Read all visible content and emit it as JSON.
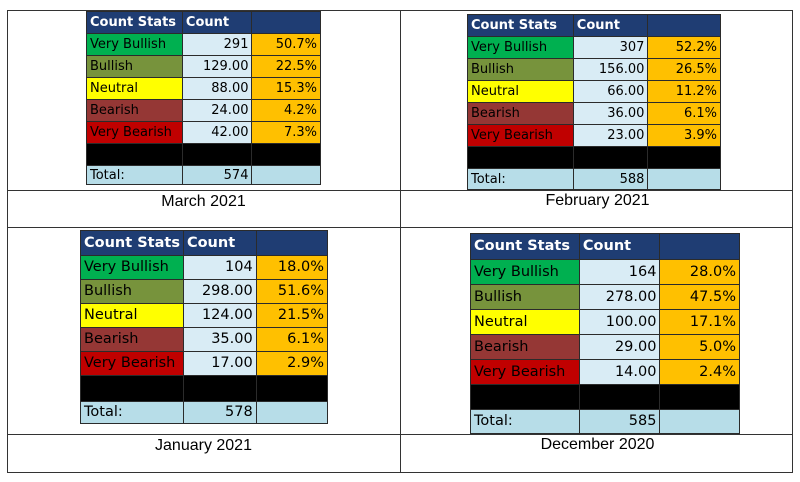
{
  "tables": [
    {
      "caption": "March 2021",
      "header": {
        "label": "Count Stats",
        "count": "Count",
        "pct": ""
      },
      "rows": [
        {
          "label": "Very Bullish",
          "count": "291",
          "pct": "50.7%"
        },
        {
          "label": "Bullish",
          "count": "129.00",
          "pct": "22.5%"
        },
        {
          "label": "Neutral",
          "count": "88.00",
          "pct": "15.3%"
        },
        {
          "label": "Bearish",
          "count": "24.00",
          "pct": "4.2%"
        },
        {
          "label": "Very Bearish",
          "count": "42.00",
          "pct": "7.3%"
        }
      ],
      "total": {
        "label": "Total:",
        "count": "574"
      }
    },
    {
      "caption": "February 2021",
      "header": {
        "label": "Count Stats",
        "count": "Count",
        "pct": ""
      },
      "rows": [
        {
          "label": "Very Bullish",
          "count": "307",
          "pct": "52.2%"
        },
        {
          "label": "Bullish",
          "count": "156.00",
          "pct": "26.5%"
        },
        {
          "label": "Neutral",
          "count": "66.00",
          "pct": "11.2%"
        },
        {
          "label": "Bearish",
          "count": "36.00",
          "pct": "6.1%"
        },
        {
          "label": "Very Bearish",
          "count": "23.00",
          "pct": "3.9%"
        }
      ],
      "total": {
        "label": "Total:",
        "count": "588"
      }
    },
    {
      "caption": "January 2021",
      "header": {
        "label": "Count Stats",
        "count": "Count",
        "pct": ""
      },
      "rows": [
        {
          "label": "Very Bullish",
          "count": "104",
          "pct": "18.0%"
        },
        {
          "label": "Bullish",
          "count": "298.00",
          "pct": "51.6%"
        },
        {
          "label": "Neutral",
          "count": "124.00",
          "pct": "21.5%"
        },
        {
          "label": "Bearish",
          "count": "35.00",
          "pct": "6.1%"
        },
        {
          "label": "Very Bearish",
          "count": "17.00",
          "pct": "2.9%"
        }
      ],
      "total": {
        "label": "Total:",
        "count": "578"
      }
    },
    {
      "caption": "December 2020",
      "header": {
        "label": "Count Stats",
        "count": "Count",
        "pct": ""
      },
      "rows": [
        {
          "label": "Very Bullish",
          "count": "164",
          "pct": "28.0%"
        },
        {
          "label": "Bullish",
          "count": "278.00",
          "pct": "47.5%"
        },
        {
          "label": "Neutral",
          "count": "100.00",
          "pct": "17.1%"
        },
        {
          "label": "Bearish",
          "count": "29.00",
          "pct": "5.0%"
        },
        {
          "label": "Very Bearish",
          "count": "14.00",
          "pct": "2.4%"
        }
      ],
      "total": {
        "label": "Total:",
        "count": "585"
      }
    }
  ],
  "colors": {
    "header": "#1f3d73",
    "very_bullish": "#00b050",
    "bullish": "#77933c",
    "neutral": "#ffff00",
    "bearish": "#953735",
    "very_bearish": "#c00000",
    "count_cell": "#d9ecf5",
    "pct_cell": "#ffc000",
    "total_row": "#b7dde8"
  }
}
